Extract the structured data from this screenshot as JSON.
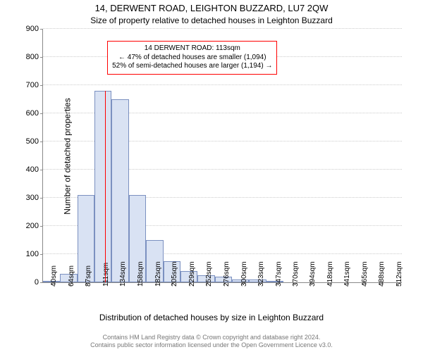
{
  "title_line1": "14, DERWENT ROAD, LEIGHTON BUZZARD, LU7 2QW",
  "title_line2": "Size of property relative to detached houses in Leighton Buzzard",
  "ylabel": "Number of detached properties",
  "xlabel": "Distribution of detached houses by size in Leighton Buzzard",
  "footer_line1": "Contains HM Land Registry data © Crown copyright and database right 2024.",
  "footer_line2": "Contains public sector information licensed under the Open Government Licence v3.0.",
  "callout_line1": "14 DERWENT ROAD: 113sqm",
  "callout_line2": "← 47% of detached houses are smaller (1,094)",
  "callout_line3": "52% of semi-detached houses are larger (1,194) →",
  "chart": {
    "type": "histogram",
    "background_color": "#ffffff",
    "grid_color": "#cccccc",
    "axis_color": "#888888",
    "bar_fill": "#d9e2f3",
    "bar_stroke": "#7b90c0",
    "marker_color": "#ff0000",
    "callout_border": "#ff0000",
    "text_color": "#000000",
    "footer_color": "#777777",
    "ylim": [
      0,
      900
    ],
    "yticks": [
      0,
      100,
      200,
      300,
      400,
      500,
      600,
      700,
      800,
      900
    ],
    "xmin": 28,
    "xmax": 520,
    "xticks": [
      {
        "pos": 40,
        "label": "40sqm"
      },
      {
        "pos": 64,
        "label": "64sqm"
      },
      {
        "pos": 87,
        "label": "87sqm"
      },
      {
        "pos": 111,
        "label": "111sqm"
      },
      {
        "pos": 134,
        "label": "134sqm"
      },
      {
        "pos": 158,
        "label": "158sqm"
      },
      {
        "pos": 182,
        "label": "182sqm"
      },
      {
        "pos": 205,
        "label": "205sqm"
      },
      {
        "pos": 229,
        "label": "229sqm"
      },
      {
        "pos": 252,
        "label": "252sqm"
      },
      {
        "pos": 276,
        "label": "276sqm"
      },
      {
        "pos": 300,
        "label": "300sqm"
      },
      {
        "pos": 323,
        "label": "323sqm"
      },
      {
        "pos": 347,
        "label": "347sqm"
      },
      {
        "pos": 370,
        "label": "370sqm"
      },
      {
        "pos": 394,
        "label": "394sqm"
      },
      {
        "pos": 418,
        "label": "418sqm"
      },
      {
        "pos": 441,
        "label": "441sqm"
      },
      {
        "pos": 465,
        "label": "465sqm"
      },
      {
        "pos": 488,
        "label": "488sqm"
      },
      {
        "pos": 512,
        "label": "512sqm"
      }
    ],
    "bin_width": 23.5,
    "bars": [
      {
        "x": 28.0,
        "count": 3
      },
      {
        "x": 51.5,
        "count": 30
      },
      {
        "x": 75.0,
        "count": 310
      },
      {
        "x": 98.5,
        "count": 680
      },
      {
        "x": 122.0,
        "count": 650
      },
      {
        "x": 145.5,
        "count": 310
      },
      {
        "x": 169.0,
        "count": 150
      },
      {
        "x": 192.5,
        "count": 75
      },
      {
        "x": 216.0,
        "count": 40
      },
      {
        "x": 239.5,
        "count": 25
      },
      {
        "x": 263.0,
        "count": 20
      },
      {
        "x": 286.5,
        "count": 10
      },
      {
        "x": 310.0,
        "count": 10
      },
      {
        "x": 333.5,
        "count": 5
      },
      {
        "x": 357.0,
        "count": 0
      },
      {
        "x": 380.5,
        "count": 0
      },
      {
        "x": 404.0,
        "count": 0
      },
      {
        "x": 427.5,
        "count": 0
      },
      {
        "x": 451.0,
        "count": 0
      },
      {
        "x": 474.5,
        "count": 0
      },
      {
        "x": 498.0,
        "count": 0
      }
    ],
    "marker_x": 113,
    "marker_height": 680,
    "title_fontsize": 13,
    "subtitle_fontsize": 12,
    "label_fontsize": 12,
    "tick_fontsize": 10,
    "callout_fontsize": 10,
    "footer_fontsize": 9
  }
}
